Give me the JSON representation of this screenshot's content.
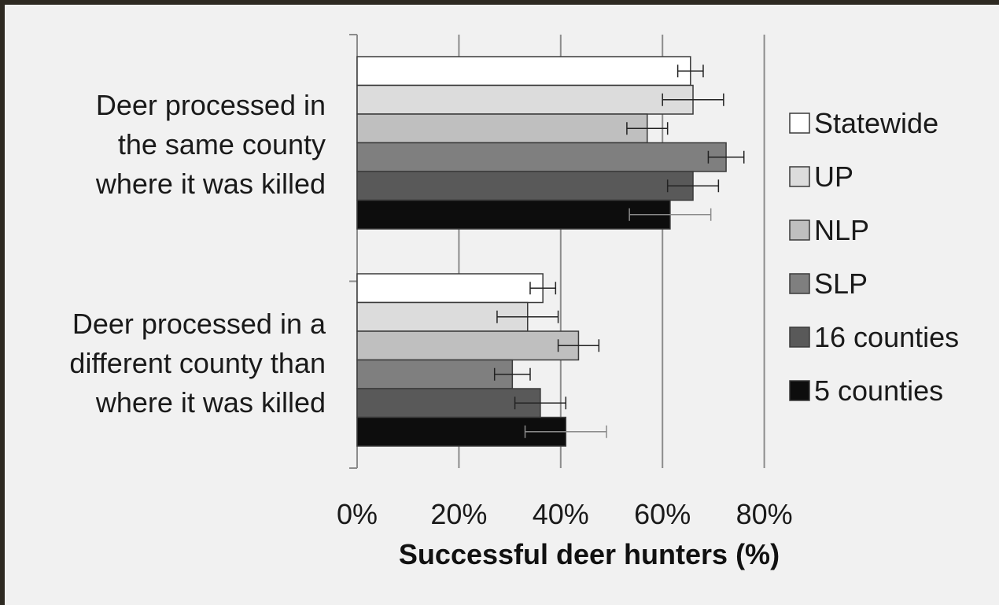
{
  "chart_data": {
    "type": "bar",
    "orientation": "horizontal",
    "title": "",
    "xlabel": "Successful deer hunters (%)",
    "ylabel": "",
    "xlim": [
      0,
      80
    ],
    "x_ticks": [
      "0%",
      "20%",
      "40%",
      "60%",
      "80%"
    ],
    "grid": "vertical",
    "legend": "right",
    "categories": [
      "Deer processed in the same county where it was killed",
      "Deer processed in a different county than where it was killed"
    ],
    "category_lines": [
      [
        "Deer processed in",
        "the same county",
        "where it was killed"
      ],
      [
        "Deer processed in a",
        "different county than",
        "where it was killed"
      ]
    ],
    "series": [
      {
        "name": "Statewide",
        "color": "#ffffff",
        "values": [
          65.5,
          36.5
        ],
        "error": [
          2.5,
          2.5
        ]
      },
      {
        "name": "UP",
        "color": "#dcdcdc",
        "values": [
          66,
          33.5
        ],
        "error": [
          6,
          6
        ]
      },
      {
        "name": "NLP",
        "color": "#bfbfbf",
        "values": [
          57,
          43.5
        ],
        "error": [
          4,
          4
        ]
      },
      {
        "name": "SLP",
        "color": "#7f7f7f",
        "values": [
          72.5,
          30.5
        ],
        "error": [
          3.5,
          3.5
        ]
      },
      {
        "name": "16 counties",
        "color": "#595959",
        "values": [
          66,
          36
        ],
        "error": [
          5,
          5
        ]
      },
      {
        "name": "5 counties",
        "color": "#0d0d0d",
        "values": [
          61.5,
          41
        ],
        "error": [
          8,
          8
        ]
      }
    ]
  }
}
